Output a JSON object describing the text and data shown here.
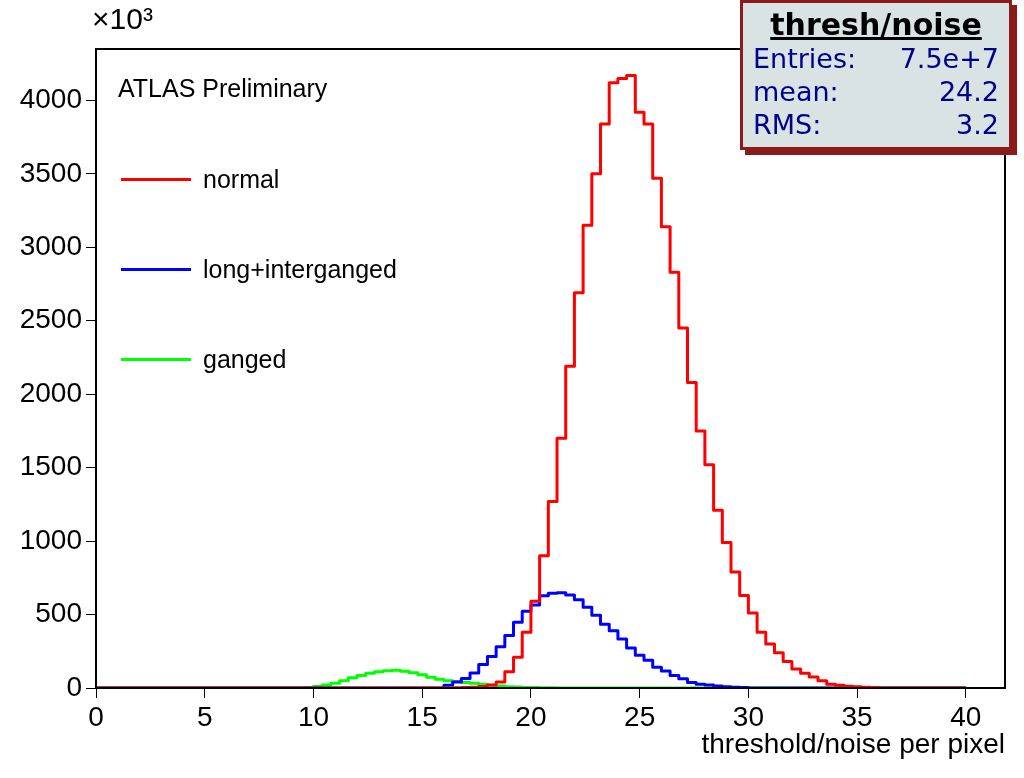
{
  "chart_data": {
    "type": "histogram",
    "title": "thresh/noise",
    "xlabel": "threshold/noise per pixel",
    "annotations": [
      "Entries: 7.5e+7",
      "mean: 24.2",
      "RMS: 3.2",
      "ATLAS Preliminary",
      "×10³"
    ],
    "bins": [
      0,
      0.4,
      0.8,
      1.2,
      1.6,
      2,
      2.4,
      2.8,
      3.2,
      3.6,
      4,
      4.4,
      4.8,
      5.2,
      5.6,
      6,
      6.4,
      6.8,
      7.2,
      7.6,
      8,
      8.4,
      8.8,
      9.2,
      9.6,
      10,
      10.4,
      10.8,
      11.2,
      11.6,
      12,
      12.4,
      12.8,
      13.2,
      13.6,
      14,
      14.4,
      14.8,
      15.2,
      15.6,
      16,
      16.4,
      16.8,
      17.2,
      17.6,
      18,
      18.4,
      18.8,
      19.2,
      19.6,
      20,
      20.4,
      20.8,
      21.2,
      21.6,
      22,
      22.4,
      22.8,
      23.2,
      23.6,
      24,
      24.4,
      24.8,
      25.2,
      25.6,
      26,
      26.4,
      26.8,
      27.2,
      27.6,
      28,
      28.4,
      28.8,
      29.2,
      29.6,
      30,
      30.4,
      30.8,
      31.2,
      31.6,
      32,
      32.4,
      32.8,
      33.2,
      33.6,
      34,
      34.4,
      34.8,
      35.2,
      35.6,
      36,
      36.4,
      36.8,
      37.2,
      37.6,
      38,
      38.4,
      38.8,
      39.2,
      39.6,
      40
    ],
    "series": [
      {
        "name": "normal",
        "color": "#ff0000",
        "values": [
          0,
          0,
          0,
          0,
          0,
          0,
          0,
          0,
          0,
          0,
          0,
          0,
          0,
          0,
          0,
          0,
          0,
          0,
          0,
          0,
          0,
          0,
          0,
          0,
          0,
          0,
          0,
          0,
          0,
          0,
          0,
          0,
          0,
          0,
          0,
          0,
          0,
          0,
          0,
          0,
          0,
          2,
          3,
          5,
          10,
          20,
          40,
          110,
          210,
          380,
          590,
          900,
          1270,
          1700,
          2190,
          2690,
          3150,
          3500,
          3840,
          4120,
          4150,
          4170,
          3920,
          3840,
          3470,
          3140,
          2830,
          2450,
          2080,
          1750,
          1520,
          1210,
          990,
          790,
          630,
          510,
          380,
          300,
          240,
          180,
          130,
          100,
          75,
          50,
          25,
          18,
          12,
          8,
          5,
          3,
          0,
          0,
          0,
          0,
          0,
          0,
          0,
          0,
          0,
          0
        ]
      },
      {
        "name": "long+interganged",
        "color": "#0000ff",
        "values": [
          0,
          0,
          0,
          0,
          0,
          0,
          0,
          0,
          0,
          0,
          0,
          0,
          0,
          0,
          0,
          0,
          0,
          0,
          0,
          0,
          0,
          0,
          0,
          0,
          0,
          0,
          0,
          0,
          0,
          0,
          0,
          0,
          0,
          0,
          0,
          0,
          0,
          0,
          0,
          0,
          18,
          41,
          64,
          102,
          160,
          215,
          280,
          358,
          448,
          523,
          565,
          628,
          645,
          648,
          633,
          600,
          550,
          495,
          434,
          389,
          333,
          272,
          223,
          189,
          142,
          115,
          85,
          63,
          38,
          26,
          20,
          14,
          9,
          5,
          4,
          0,
          0,
          0,
          0,
          0,
          0,
          0,
          0,
          0,
          0,
          0,
          0,
          0,
          0,
          0,
          0,
          0,
          0,
          0,
          0,
          0,
          0,
          0,
          0,
          0
        ]
      },
      {
        "name": "ganged",
        "color": "#00ff00",
        "values": [
          0,
          0,
          0,
          0,
          0,
          0,
          0,
          0,
          0,
          0,
          0,
          0,
          0,
          0,
          0,
          0,
          0,
          0,
          0,
          0,
          0,
          0,
          0,
          0,
          3,
          10,
          20,
          32,
          50,
          70,
          85,
          100,
          110,
          118,
          120,
          114,
          104,
          90,
          74,
          60,
          50,
          44,
          38,
          32,
          25,
          18,
          13,
          9,
          6,
          4,
          3,
          2,
          1,
          0,
          0,
          0,
          0,
          0,
          0,
          0,
          0,
          0,
          0,
          0,
          0,
          0,
          0,
          0,
          0,
          0,
          0,
          0,
          0,
          0,
          0,
          0,
          0,
          0,
          0,
          0,
          0,
          0,
          0,
          0,
          0,
          0,
          0,
          0,
          0,
          0,
          0,
          0,
          0,
          0,
          0,
          0,
          0,
          0,
          0,
          0
        ]
      }
    ],
    "xlim": [
      0,
      41.8
    ],
    "xticks": [
      0,
      5,
      10,
      15,
      20,
      25,
      30,
      35,
      40
    ],
    "ylim": [
      0,
      4350
    ],
    "yticks": [
      0,
      500,
      1000,
      1500,
      2000,
      2500,
      3000,
      3500,
      4000
    ],
    "legend": "top left"
  }
}
